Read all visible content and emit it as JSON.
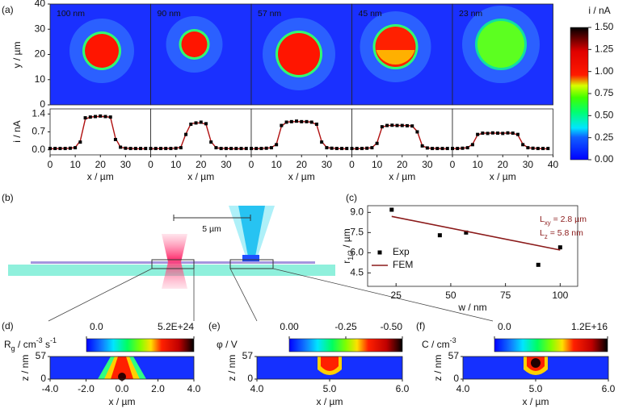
{
  "chart_data": [
    {
      "type": "heatmap_row",
      "panel": "(a)",
      "titles": [
        "100 nm",
        "90 nm",
        "57 nm",
        "45 nm",
        "23 nm"
      ],
      "ylabel": "y / µm",
      "ylim": [
        0,
        40
      ],
      "yticks": [
        0,
        10,
        20,
        30,
        40
      ],
      "colorbar": {
        "title": "i / nA",
        "lim": [
          0,
          1.5
        ],
        "ticks": [
          {
            "value": 0,
            "label": "0.00"
          },
          {
            "value": 0.25,
            "label": "0.25"
          },
          {
            "value": 0.5,
            "label": "0.50"
          },
          {
            "value": 0.75,
            "label": "0.75"
          },
          {
            "value": 1,
            "label": "1.00"
          },
          {
            "value": 1.25,
            "label": "1.25"
          },
          {
            "value": 1.5,
            "label": "1.50"
          }
        ]
      }
    },
    {
      "type": "profiles",
      "ylabel": "i / nA",
      "xlabel": "x / µm",
      "xlim": [
        0,
        40
      ],
      "xticks": [
        0,
        10,
        20,
        30,
        40
      ],
      "ylim": [
        -0.2,
        1.6
      ],
      "yticks": [
        {
          "value": 0,
          "label": "0.0"
        },
        0.7,
        1.4
      ],
      "x": [
        0,
        2,
        4,
        6,
        8,
        10,
        12,
        14,
        16,
        18,
        20,
        22,
        24,
        26,
        28,
        30,
        32,
        34,
        36,
        38
      ],
      "panels": [
        {
          "series": [
            {
              "color": "#000000",
              "values": [
                0.05,
                0.05,
                0.05,
                0.05,
                0.06,
                0.08,
                0.3,
                1.25,
                1.28,
                1.3,
                1.32,
                1.3,
                1.28,
                0.4,
                0.1,
                0.06,
                0.05,
                0.05,
                0.05,
                0.05
              ]
            },
            {
              "color": "#b01010",
              "values": [
                0.04,
                0.04,
                0.05,
                0.05,
                0.06,
                0.09,
                0.35,
                1.2,
                1.28,
                1.3,
                1.3,
                1.3,
                1.27,
                0.45,
                0.1,
                0.06,
                0.05,
                0.04,
                0.04,
                0.04
              ]
            }
          ]
        },
        {
          "series": [
            {
              "color": "#000000",
              "values": [
                0.05,
                0.05,
                0.05,
                0.05,
                0.05,
                0.06,
                0.08,
                0.6,
                1.0,
                1.05,
                1.08,
                1.02,
                0.3,
                0.08,
                0.05,
                0.05,
                0.05,
                0.05,
                0.05,
                0.05
              ]
            },
            {
              "color": "#b01010",
              "values": [
                0.04,
                0.04,
                0.05,
                0.05,
                0.05,
                0.06,
                0.1,
                0.62,
                1.02,
                1.05,
                1.05,
                1.0,
                0.32,
                0.08,
                0.05,
                0.05,
                0.04,
                0.04,
                0.04,
                0.04
              ]
            }
          ]
        },
        {
          "series": [
            {
              "color": "#000000",
              "values": [
                0.05,
                0.05,
                0.05,
                0.06,
                0.08,
                0.2,
                0.95,
                1.08,
                1.1,
                1.12,
                1.1,
                1.1,
                1.08,
                1.0,
                0.3,
                0.08,
                0.06,
                0.05,
                0.05,
                0.05
              ]
            },
            {
              "color": "#b01010",
              "values": [
                0.04,
                0.04,
                0.05,
                0.06,
                0.08,
                0.22,
                0.92,
                1.08,
                1.1,
                1.1,
                1.1,
                1.1,
                1.08,
                0.98,
                0.32,
                0.09,
                0.06,
                0.05,
                0.04,
                0.04
              ]
            }
          ]
        },
        {
          "series": [
            {
              "color": "#000000",
              "values": [
                0.05,
                0.05,
                0.05,
                0.06,
                0.08,
                0.25,
                0.9,
                0.95,
                0.96,
                0.95,
                0.95,
                0.94,
                0.93,
                0.7,
                0.15,
                0.07,
                0.05,
                0.05,
                0.05,
                0.05
              ]
            },
            {
              "color": "#b01010",
              "values": [
                0.04,
                0.04,
                0.05,
                0.06,
                0.08,
                0.27,
                0.88,
                0.95,
                0.95,
                0.95,
                0.95,
                0.95,
                0.93,
                0.72,
                0.16,
                0.07,
                0.05,
                0.05,
                0.04,
                0.04
              ]
            }
          ]
        },
        {
          "series": [
            {
              "color": "#000000",
              "values": [
                0.05,
                0.05,
                0.06,
                0.08,
                0.2,
                0.6,
                0.65,
                0.64,
                0.66,
                0.65,
                0.64,
                0.66,
                0.65,
                0.6,
                0.2,
                0.08,
                0.06,
                0.05,
                0.05,
                0.05
              ]
            },
            {
              "color": "#b01010",
              "values": [
                0.04,
                0.05,
                0.06,
                0.08,
                0.22,
                0.58,
                0.65,
                0.65,
                0.65,
                0.65,
                0.65,
                0.65,
                0.65,
                0.58,
                0.22,
                0.08,
                0.06,
                0.05,
                0.04,
                0.04
              ]
            }
          ]
        }
      ]
    },
    {
      "type": "scatter",
      "panel": "(c)",
      "xlabel": "w / nm",
      "ylabel": [
        {
          "text": "r"
        },
        {
          "text": "1/2",
          "shift": "sub"
        },
        {
          "text": " / µm"
        }
      ],
      "xlim": [
        12,
        108
      ],
      "xticks": [
        25,
        50,
        75,
        100
      ],
      "ylim": [
        3.5,
        9.5
      ],
      "yticks": [
        4.5,
        {
          "value": 6,
          "label": "6.0"
        },
        7.5,
        {
          "value": 9,
          "label": "9.0"
        }
      ],
      "series": [
        {
          "name": "Exp",
          "mode": "markers",
          "color": "#000000",
          "x": [
            23,
            45,
            57,
            90,
            100
          ],
          "values": [
            9.2,
            7.3,
            7.5,
            5.1,
            6.4
          ]
        },
        {
          "name": "FEM",
          "mode": "line",
          "color": "#8b1a1a",
          "x": [
            23,
            100
          ],
          "values": [
            8.7,
            6.2
          ]
        }
      ],
      "annotations": [
        [
          {
            "text": "L"
          },
          {
            "text": "xy",
            "shift": "sub"
          },
          {
            "text": " = 2.8 µm"
          }
        ],
        [
          {
            "text": "L"
          },
          {
            "text": "z",
            "shift": "sub"
          },
          {
            "text": " = 5.8 nm"
          }
        ]
      ]
    },
    {
      "type": "colormap",
      "panel": "(d)",
      "colorbar": {
        "title": [
          {
            "text": "R"
          },
          {
            "text": "g",
            "shift": "sub"
          },
          {
            "text": " / cm"
          },
          {
            "text": "-3",
            "shift": "sup"
          },
          {
            "text": " s"
          },
          {
            "text": "-1",
            "shift": "sup"
          }
        ],
        "lim": [
          0,
          5.2e+24
        ],
        "ticks": [
          {
            "value": 0,
            "label": "0.0"
          },
          {
            "value": 5.2e+24,
            "label": "5.2E+24"
          }
        ]
      },
      "ylabel": "z / nm",
      "ylim": [
        0,
        57
      ],
      "yticks": [
        0,
        57
      ],
      "xlabel": "x / µm",
      "xlim": [
        -4,
        4
      ],
      "xticks": [
        {
          "value": -4,
          "label": "-4.0"
        },
        {
          "value": -2,
          "label": "-2.0"
        },
        {
          "value": 0,
          "label": "0.0"
        },
        {
          "value": 2,
          "label": "2.0"
        },
        {
          "value": 4,
          "label": "4.0"
        }
      ]
    },
    {
      "type": "colormap",
      "panel": "(e)",
      "colorbar": {
        "title": [
          {
            "text": "φ / V"
          }
        ],
        "lim": [
          0,
          -0.5
        ],
        "ticks": [
          {
            "value": 0,
            "label": "0.00"
          },
          {
            "value": -0.25,
            "label": "-0.25"
          },
          {
            "value": -0.5,
            "label": "-0.50"
          }
        ]
      },
      "ylabel": "z / nm",
      "ylim": [
        0,
        57
      ],
      "yticks": [
        0,
        57
      ],
      "xlabel": "x / µm",
      "xlim": [
        4,
        6
      ],
      "xticks": [
        {
          "value": 4,
          "label": "4.0"
        },
        {
          "value": 5,
          "label": "5.0"
        },
        {
          "value": 6,
          "label": "6.0"
        }
      ]
    },
    {
      "type": "colormap",
      "panel": "(f)",
      "colorbar": {
        "title": [
          {
            "text": "C / cm"
          },
          {
            "text": "-3",
            "shift": "sup"
          }
        ],
        "lim": [
          0,
          1.2e+16
        ],
        "ticks": [
          {
            "value": 0,
            "label": "0.0"
          },
          {
            "value": 1.2e+16,
            "label": "1.2E+16"
          }
        ]
      },
      "ylabel": "z / nm",
      "ylim": [
        0,
        57
      ],
      "yticks": [
        0,
        57
      ],
      "xlabel": "x / µm",
      "xlim": [
        4,
        6
      ],
      "xticks": [
        {
          "value": 4,
          "label": "4.0"
        },
        {
          "value": 5,
          "label": "5.0"
        },
        {
          "value": 6,
          "label": "6.0"
        }
      ]
    }
  ],
  "schematic": {
    "panel": "(b)",
    "scale_label": "5 µm"
  }
}
